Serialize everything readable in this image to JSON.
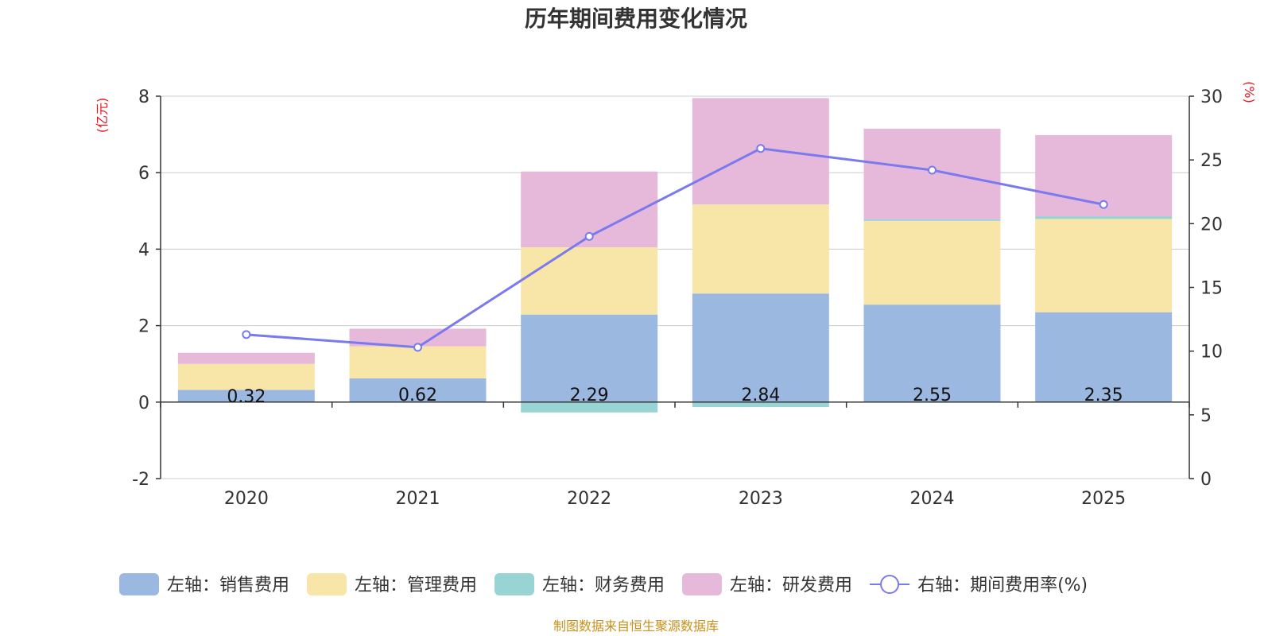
{
  "chart_data": {
    "type": "bar",
    "stacked": true,
    "title": "历年期间费用变化情况",
    "categories": [
      "2020",
      "2021",
      "2022",
      "2023",
      "2024",
      "2025"
    ],
    "series": [
      {
        "name": "左轴：销售费用",
        "axis": "left",
        "color": "#9bb8e1",
        "values": [
          0.32,
          0.62,
          2.29,
          2.84,
          2.55,
          2.35
        ],
        "labels": [
          "0.32",
          "0.62",
          "2.29",
          "2.84",
          "2.55",
          "2.35"
        ]
      },
      {
        "name": "左轴：管理费用",
        "axis": "left",
        "color": "#f8e6a8",
        "values": [
          0.68,
          0.84,
          1.76,
          2.33,
          2.19,
          2.44
        ]
      },
      {
        "name": "左轴：财务费用",
        "axis": "left",
        "color": "#98d4d3",
        "values": [
          0.0,
          0.0,
          -0.27,
          -0.13,
          0.04,
          0.07
        ]
      },
      {
        "name": "左轴：研发费用",
        "axis": "left",
        "color": "#e6b8d9",
        "values": [
          0.29,
          0.46,
          1.98,
          2.78,
          2.37,
          2.12
        ]
      }
    ],
    "line": {
      "name": "右轴：期间费用率(%)",
      "axis": "right",
      "color": "#7a7aee",
      "values": [
        11.3,
        10.3,
        19.0,
        25.9,
        24.2,
        21.5
      ]
    },
    "y_left": {
      "label": "(亿元)",
      "min": -2,
      "max": 8,
      "ticks": [
        "-2",
        "0",
        "2",
        "4",
        "6",
        "8"
      ]
    },
    "y_right": {
      "label": "(%)",
      "min": 0,
      "max": 30,
      "ticks": [
        "0",
        "5",
        "10",
        "15",
        "20",
        "25",
        "30"
      ]
    },
    "legend_position": "bottom",
    "source": "制图数据来自恒生聚源数据库"
  }
}
